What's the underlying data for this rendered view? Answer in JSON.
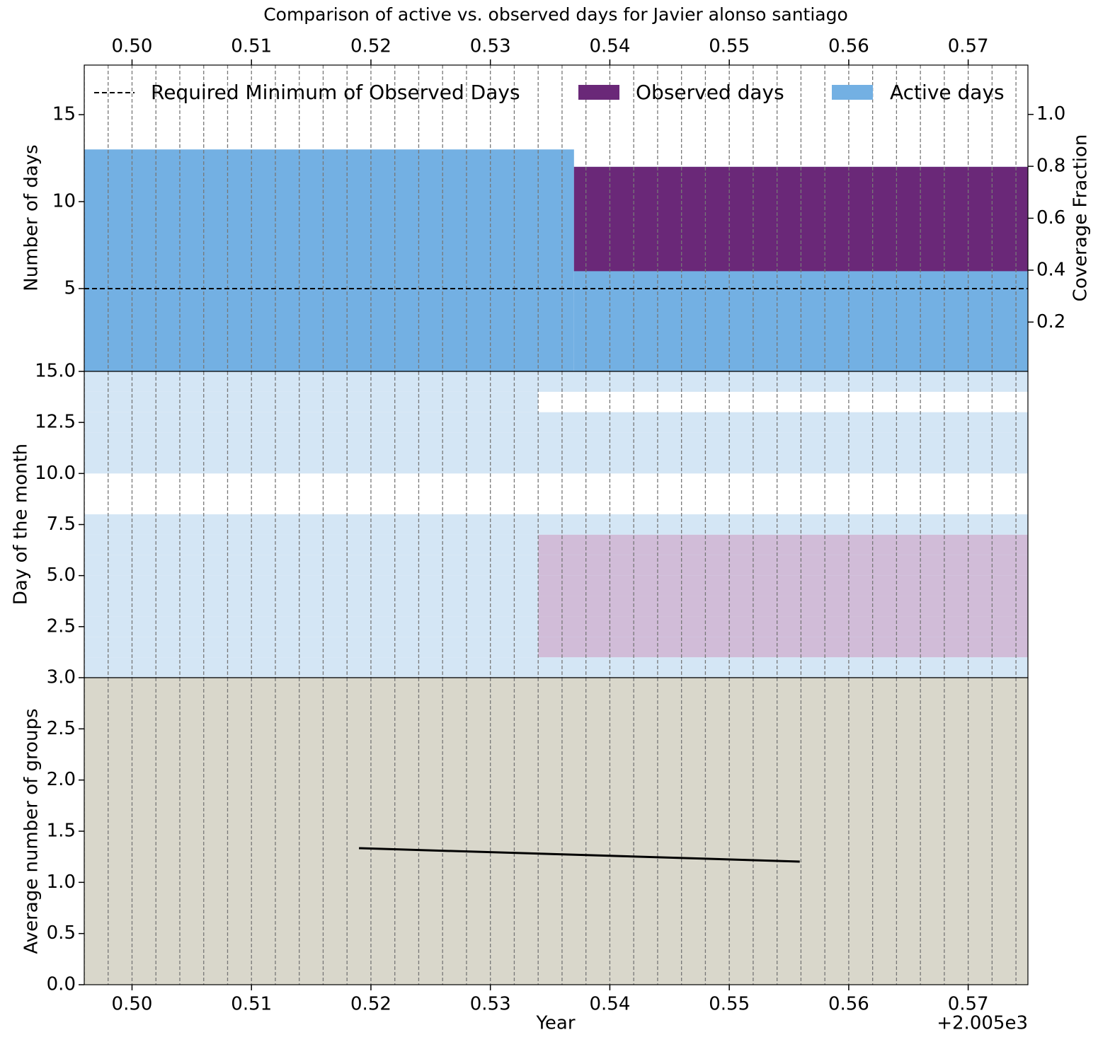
{
  "chart_data": [
    {
      "type": "bar",
      "title": "Comparison of active vs. observed days for Javier alonso santiago",
      "ylabel": "Number of days",
      "y2label": "Coverage Fraction",
      "xlim": [
        0.496,
        0.575
      ],
      "xticks": [
        {
          "value": 0.5,
          "label": "0.50"
        },
        0.51,
        0.52,
        0.53,
        0.54,
        0.55,
        0.56,
        0.57
      ],
      "vlines": [
        0.496,
        0.498,
        0.5,
        0.502,
        0.504,
        0.506,
        0.508,
        0.51,
        0.512,
        0.514,
        0.516,
        0.518,
        0.52,
        0.522,
        0.524,
        0.526,
        0.528,
        0.53,
        0.532,
        0.534,
        0.536,
        0.538,
        0.54,
        0.542,
        0.544,
        0.546,
        0.548,
        0.55,
        0.552,
        0.554,
        0.556,
        0.558,
        0.56,
        0.562,
        0.564,
        0.566,
        0.568,
        0.57,
        0.572,
        0.574
      ],
      "ylim": [
        0.24,
        17.85
      ],
      "yticks": [
        5,
        10,
        15
      ],
      "y2lim": [
        0.01,
        1.19
      ],
      "y2ticks": [
        0.2,
        0.4,
        0.6,
        0.8,
        {
          "value": 1,
          "label": "1.0"
        }
      ],
      "x_start": [
        0.496,
        0.537
      ],
      "x_end": [
        0.537,
        0.575
      ],
      "series": [
        {
          "name": "Active days",
          "color": "#73b0e3",
          "values": [
            13,
            12
          ]
        },
        {
          "name": "Observed days",
          "color": "#6a2878",
          "values": [
            null,
            6
          ]
        }
      ],
      "threshold": {
        "name": "Required Minimum of Observed Days",
        "value": 5
      },
      "legend": "top"
    },
    {
      "type": "timeline",
      "ylabel": "Day of the month",
      "xlim": [
        0.496,
        0.575
      ],
      "ylim": [
        0,
        15
      ],
      "yticks": [
        {
          "value": 15,
          "label": "15.0"
        },
        12.5,
        {
          "value": 10,
          "label": "10.0"
        },
        7.5,
        {
          "value": 5,
          "label": "5.0"
        },
        2.5
      ],
      "active_color": "#d4e6f5",
      "observed_color": "#d1bcd8",
      "periods": [
        {
          "start": 0.496,
          "end": 0.534,
          "active_days": [
            1,
            2,
            3,
            4,
            5,
            6,
            7,
            8,
            11,
            12,
            13,
            14,
            15
          ]
        },
        {
          "start": 0.534,
          "end": 0.575,
          "active_days": [
            1,
            2,
            3,
            4,
            5,
            6,
            7,
            8,
            11,
            12,
            13,
            15
          ],
          "observed_days": [
            2,
            3,
            4,
            5,
            6,
            7
          ]
        }
      ]
    },
    {
      "type": "line",
      "ylabel": "Average number of groups",
      "xlabel": "Year",
      "x_offset_label": "+2.005e3",
      "xlim": [
        0.496,
        0.575
      ],
      "xticks": [
        {
          "value": 0.5,
          "label": "0.50"
        },
        0.51,
        0.52,
        0.53,
        0.54,
        0.55,
        0.56,
        0.57
      ],
      "ylim": [
        0,
        3
      ],
      "yticks": [
        {
          "value": 0,
          "label": "0.0"
        },
        0.5,
        {
          "value": 1,
          "label": "1.0"
        },
        1.5,
        {
          "value": 2,
          "label": "2.0"
        },
        2.5,
        {
          "value": 3,
          "label": "3.0"
        }
      ],
      "background": "#d9d7cb",
      "color": "#000000",
      "x": [
        0.519,
        0.5559
      ],
      "values": [
        1.334,
        1.203
      ]
    }
  ]
}
